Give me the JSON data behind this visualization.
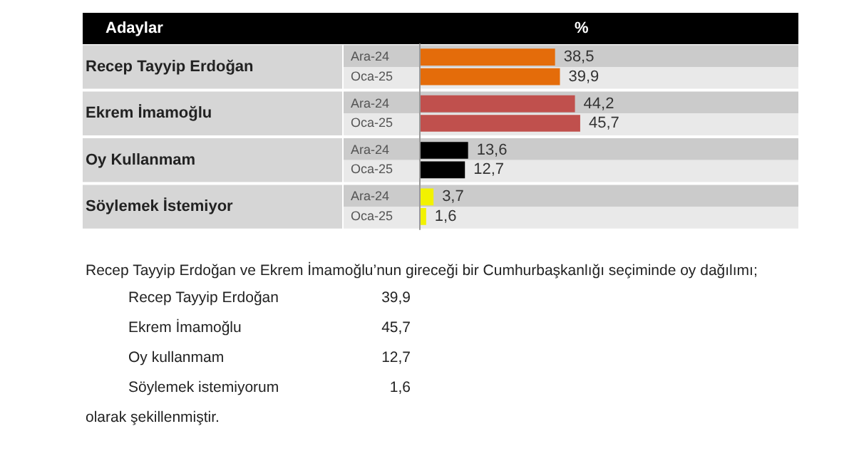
{
  "chart_data": {
    "type": "bar",
    "orientation": "horizontal",
    "ylabel": "Adaylar",
    "xlabel": "%",
    "categories": [
      "Recep Tayyip Erdoğan",
      "Ekrem İmamoğlu",
      "Oy Kullanmam",
      "Söylemek İstemiyor"
    ],
    "series": [
      {
        "name": "Ara-24",
        "colors": [
          "#e46c0a",
          "#c0504d",
          "#000000",
          "#f2f200"
        ],
        "values": [
          38.5,
          44.2,
          13.6,
          3.7
        ],
        "value_labels": [
          "38,5",
          "44,2",
          "13,6",
          "3,7"
        ]
      },
      {
        "name": "Oca-25",
        "colors": [
          "#e46c0a",
          "#c0504d",
          "#000000",
          "#f2f200"
        ],
        "values": [
          39.9,
          45.7,
          12.7,
          1.6
        ],
        "value_labels": [
          "39,9",
          "45,7",
          "12,7",
          "1,6"
        ]
      }
    ],
    "tick_labels": "y",
    "grid": false,
    "legend": false,
    "annotations": [
      "Recep Tayyip Erdoğan ve Ekrem İmamoğlu’nun gireceği bir Cumhurbaşkanlığı seçiminde oy dağılımı;",
      "Recep Tayyip Erdoğan\t39,9",
      "Ekrem İmamoğlu\t45,7",
      "Oy kullanmam\t12,7",
      "Söylemek istemiyorum\t1,6",
      "olarak şekillenmiştir."
    ]
  }
}
